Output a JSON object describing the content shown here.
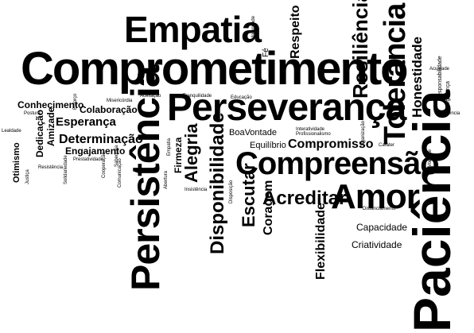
{
  "word_cloud": {
    "words": [
      {
        "id": "paciencia",
        "text": "Paciência"
      },
      {
        "id": "comprometimento",
        "text": "Comprometimento"
      },
      {
        "id": "perseveranca",
        "text": "Perseverança"
      },
      {
        "id": "persistencia",
        "text": "Persistência"
      },
      {
        "id": "empatia",
        "text": "Empatia"
      },
      {
        "id": "compreensao",
        "text": "Compreensão"
      },
      {
        "id": "amor",
        "text": "Amor"
      },
      {
        "id": "tolerancia",
        "text": "Tolerância"
      },
      {
        "id": "resiliencia",
        "text": "Resiliência"
      },
      {
        "id": "disponibilidade",
        "text": "Disponibilidade"
      },
      {
        "id": "acreditar",
        "text": "Acreditar"
      },
      {
        "id": "alegria",
        "text": "Alegria"
      },
      {
        "id": "escutar",
        "text": "Escutar"
      },
      {
        "id": "flexibilidade",
        "text": "Flexibilidade"
      },
      {
        "id": "honestidade",
        "text": "Honestidade"
      },
      {
        "id": "respeito",
        "text": "Respeito"
      },
      {
        "id": "compromisso",
        "text": "Compromisso"
      },
      {
        "id": "coragem",
        "text": "Coragem"
      },
      {
        "id": "determinacao",
        "text": "Determinação"
      },
      {
        "id": "esperanca",
        "text": "Esperança"
      },
      {
        "id": "colaboracao",
        "text": "Colaboração"
      },
      {
        "id": "conhecimento",
        "text": "Conhecimento"
      },
      {
        "id": "dedicacao",
        "text": "Dedicação"
      },
      {
        "id": "engajamento",
        "text": "Engajamento"
      },
      {
        "id": "amizade",
        "text": "Amizade"
      },
      {
        "id": "otimismo",
        "text": "Otimismo"
      },
      {
        "id": "firmeza",
        "text": "Firmeza"
      },
      {
        "id": "boavontade",
        "text": "BoaVontade"
      },
      {
        "id": "equilibrio",
        "text": "Equilíbrio"
      },
      {
        "id": "capacidade",
        "text": "Capacidade"
      },
      {
        "id": "criatividade",
        "text": "Criatividade"
      },
      {
        "id": "fe",
        "text": "Fé"
      },
      {
        "id": "responsabilidade",
        "text": "Responsabilidade"
      },
      {
        "id": "seguranca",
        "text": "Segurança"
      },
      {
        "id": "acuidade",
        "text": "Acuidade"
      },
      {
        "id": "interatividade",
        "text": "Interatividade"
      },
      {
        "id": "profissionalismo",
        "text": "Profissionalismo"
      },
      {
        "id": "inteligencia",
        "text": "Inteligência"
      },
      {
        "id": "carater",
        "text": "Caráter"
      },
      {
        "id": "organizacao",
        "text": "Organização"
      },
      {
        "id": "vontade",
        "text": "Vontade"
      },
      {
        "id": "distanciamento",
        "text": "Distanciamento"
      },
      {
        "id": "educacao",
        "text": "Educação"
      },
      {
        "id": "tranquilidade",
        "text": "Tranquilidade"
      },
      {
        "id": "aceitacao",
        "text": "Aceitação"
      },
      {
        "id": "misericordia",
        "text": "Misericórdia"
      },
      {
        "id": "esforco",
        "text": "Esforço"
      },
      {
        "id": "postura",
        "text": "Postura"
      },
      {
        "id": "lealdade",
        "text": "Lealdade"
      },
      {
        "id": "justica",
        "text": "Justiça"
      },
      {
        "id": "resistencia",
        "text": "Resistência"
      },
      {
        "id": "solidariedade",
        "text": "Solidariedade"
      },
      {
        "id": "prestatividade",
        "text": "Prestatividade"
      },
      {
        "id": "cooperacao",
        "text": "Cooperação"
      },
      {
        "id": "comunicacao",
        "text": "Comunicação"
      },
      {
        "id": "abertura",
        "text": "Abertura"
      },
      {
        "id": "empatia_small",
        "text": "Empatia"
      },
      {
        "id": "insistencia",
        "text": "Insistência"
      },
      {
        "id": "disposicao",
        "text": "Disposição"
      },
      {
        "id": "maturidade",
        "text": "Maturidade"
      },
      {
        "id": "sabedoria",
        "text": "Sabedoria"
      }
    ]
  }
}
